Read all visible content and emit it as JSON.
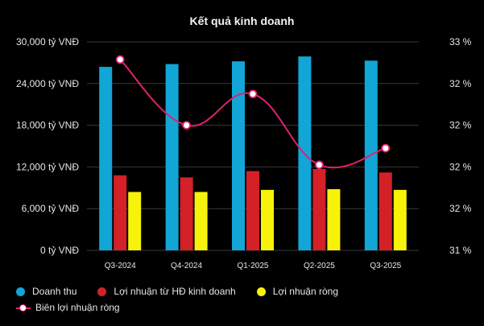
{
  "chart_data": {
    "type": "bar",
    "title": "Kết quả kinh doanh",
    "categories": [
      "Q3-2024",
      "Q4-2024",
      "Q1-2025",
      "Q2-2025",
      "Q3-2025"
    ],
    "y_left": {
      "ylim": [
        0,
        30000
      ],
      "tick_labels": [
        "0 tỷ VNĐ",
        "6,000 tỷ VNĐ",
        "12,000 tỷ VNĐ",
        "18,000 tỷ VNĐ",
        "24,000 tỷ VNĐ",
        "30,000 tỷ VNĐ"
      ]
    },
    "y_right": {
      "ylim": [
        31.0,
        33.0
      ],
      "tick_labels": [
        "31 %",
        "32 %",
        "32 %",
        "32 %",
        "32 %",
        "33 %"
      ]
    },
    "series": [
      {
        "name": "Doanh thu",
        "kind": "bar",
        "axis": "left",
        "color": "#12a6d6",
        "values": [
          26400,
          26800,
          27200,
          27900,
          27300
        ]
      },
      {
        "name": "Lợi nhuận từ HĐ kinh doanh",
        "kind": "bar",
        "axis": "left",
        "color": "#d42027",
        "values": [
          10800,
          10500,
          11400,
          11700,
          11200
        ]
      },
      {
        "name": "Lợi nhuận ròng",
        "kind": "bar",
        "axis": "left",
        "color": "#f7f20a",
        "values": [
          8400,
          8400,
          8700,
          8800,
          8700
        ]
      },
      {
        "name": "Biên lợi nhuận ròng",
        "kind": "line",
        "axis": "right",
        "color": "#e0206f",
        "values": [
          32.83,
          32.2,
          32.5,
          31.82,
          31.98
        ]
      }
    ],
    "grid": true,
    "legend_position": "bottom-left"
  },
  "colors": {
    "background": "#000000",
    "grid": "#3a3a3a"
  }
}
